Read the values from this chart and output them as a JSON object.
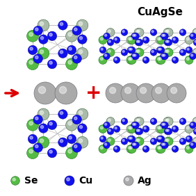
{
  "title": "CuAgSe",
  "title_fontsize": 11,
  "title_fontweight": "bold",
  "se_color": "#55BB44",
  "cu_color": "#1111EE",
  "ag_color": "#AAAAAA",
  "bond_color": "#BBBBBB",
  "background": "#FFFFFF",
  "arrow_color": "#DD0000",
  "plus_color": "#DD0000",
  "legend_se_label": "Se",
  "legend_cu_label": "Cu",
  "legend_ag_label": "Ag",
  "legend_fontsize": 10,
  "legend_fontweight": "bold"
}
